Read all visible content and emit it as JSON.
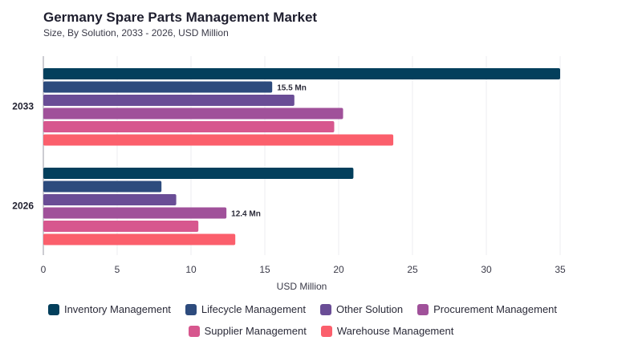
{
  "header": {
    "title": "Germany Spare Parts Management Market",
    "subtitle": "Size, By Solution, 2033 - 2026, USD Million"
  },
  "chart_data": {
    "type": "bar",
    "orientation": "horizontal",
    "categories": [
      "2033",
      "2026"
    ],
    "series": [
      {
        "name": "Inventory Management",
        "color": "#033f5c",
        "values": [
          35.0,
          21.0
        ]
      },
      {
        "name": "Lifecycle Management",
        "color": "#2d4b7d",
        "values": [
          15.5,
          8.0
        ]
      },
      {
        "name": "Other Solution",
        "color": "#6a4d96",
        "values": [
          17.0,
          9.0
        ]
      },
      {
        "name": "Procurement Management",
        "color": "#a0519a",
        "values": [
          20.3,
          12.4
        ]
      },
      {
        "name": "Supplier Management",
        "color": "#d7578e",
        "values": [
          19.7,
          10.5
        ]
      },
      {
        "name": "Warehouse Management",
        "color": "#fb5f6c",
        "values": [
          23.7,
          13.0
        ]
      }
    ],
    "data_labels": [
      {
        "category": "2033",
        "series": "Lifecycle Management",
        "text": "15.5 Mn"
      },
      {
        "category": "2026",
        "series": "Procurement Management",
        "text": "12.4 Mn"
      }
    ],
    "xlabel": "USD Million",
    "xlim": [
      0,
      35
    ],
    "xticks": [
      0,
      5,
      10,
      15,
      20,
      25,
      30,
      35
    ],
    "grid": true,
    "legend_position": "bottom"
  }
}
